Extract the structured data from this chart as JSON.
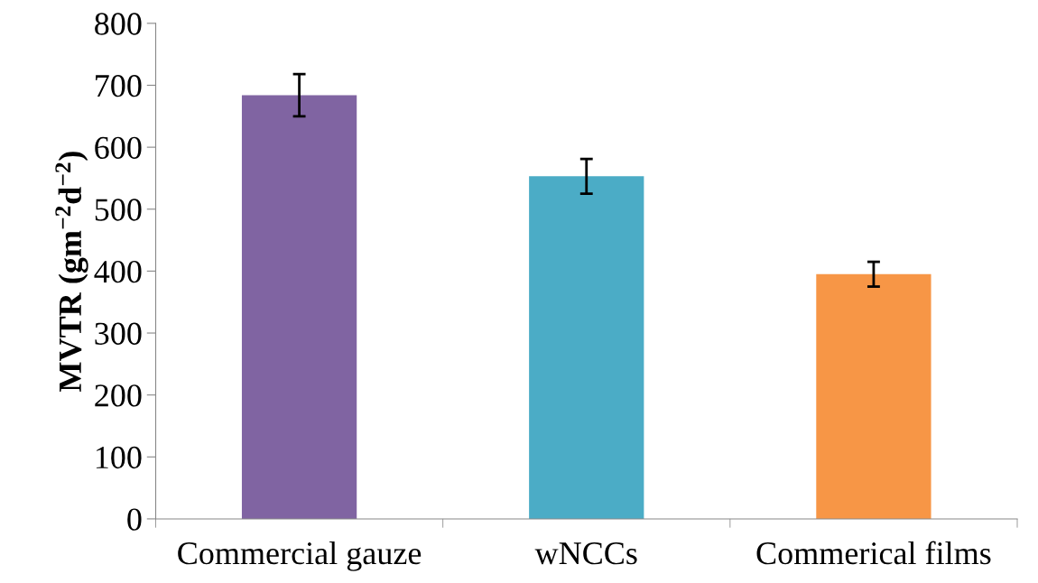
{
  "chart_data": {
    "type": "bar",
    "ylabel": "MVTR (gm$^{−2}$d$^{−2}$)",
    "categories": [
      "Commercial gauze",
      "wNCCs",
      "Commerical films"
    ],
    "values": [
      684,
      553,
      395
    ],
    "colors": [
      "#8064a2",
      "#4bacc6",
      "#f79646"
    ],
    "errors": [
      34,
      28,
      20
    ],
    "ylim": [
      0,
      800
    ],
    "yticks": [
      0,
      100,
      200,
      300,
      400,
      500,
      600,
      700,
      800
    ],
    "grid": false,
    "legend": false
  }
}
